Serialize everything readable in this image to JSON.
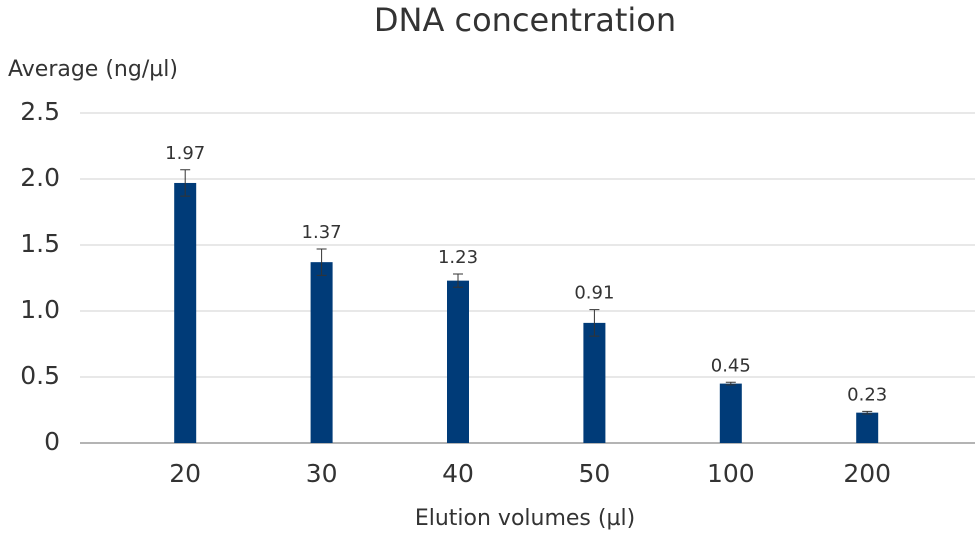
{
  "chart_data": {
    "type": "bar",
    "title": "DNA concentration",
    "y_label": "Average (ng/µl)",
    "x_label": "Elution volumes (µl)",
    "categories": [
      "20",
      "30",
      "40",
      "50",
      "100",
      "200"
    ],
    "values": [
      1.97,
      1.37,
      1.23,
      0.91,
      0.45,
      0.23
    ],
    "errors": [
      0.1,
      0.1,
      0.05,
      0.1,
      0.01,
      0.01
    ],
    "color": "#003b78",
    "ylim": [
      0,
      2.5
    ],
    "yticks": [
      0,
      0.5,
      {
        "value": 1,
        "label": "1.0"
      },
      1.5,
      {
        "value": 2,
        "label": "2.0"
      },
      2.5
    ],
    "grid": true
  }
}
